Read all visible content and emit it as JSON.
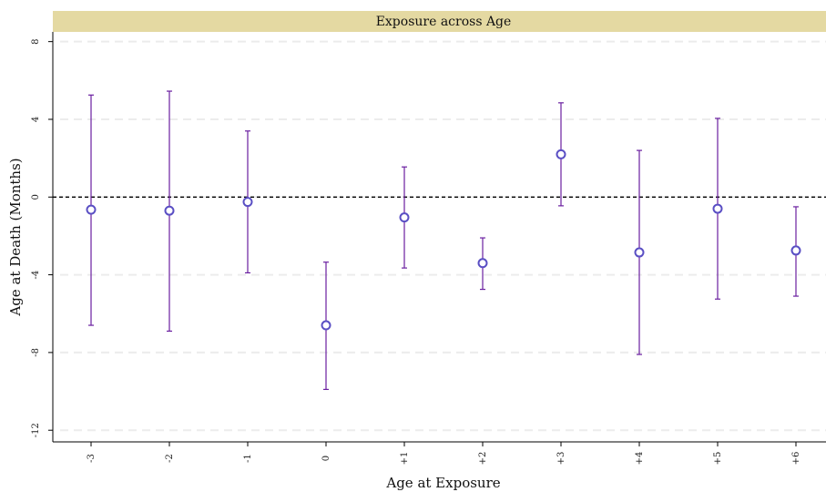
{
  "chart_data": {
    "type": "scatter",
    "title": "Exposure across Age",
    "xlabel": "Age at Exposure",
    "ylabel": "Age at Death (Months)",
    "categories": [
      "-3",
      "-2",
      "-1",
      "0",
      "+1",
      "+2",
      "+3",
      "+4",
      "+5",
      "+6"
    ],
    "yticks": [
      "-12",
      "-8",
      "-4",
      "0",
      "4",
      "8"
    ],
    "ylim": [
      -12.6,
      8.5
    ],
    "reference_line": 0,
    "grid": "horizontal dashed",
    "series": [
      {
        "estimate": [
          -0.65,
          -0.7,
          -0.25,
          -6.6,
          -1.05,
          -3.4,
          2.2,
          -2.85,
          -0.6,
          -2.75
        ],
        "ci_lower": [
          -6.6,
          -6.9,
          -3.9,
          -9.9,
          -3.65,
          -4.75,
          -0.45,
          -8.1,
          -5.25,
          -5.1
        ],
        "ci_upper": [
          5.25,
          5.45,
          3.4,
          -3.35,
          1.55,
          -2.1,
          4.85,
          2.4,
          4.05,
          -0.5
        ]
      }
    ],
    "colors": {
      "marker": "#5a4fc4",
      "errorbar": "#6a1fa0",
      "title_bar": "#e4d9a2",
      "gridline": "#ececec",
      "refline": "#000000"
    }
  }
}
